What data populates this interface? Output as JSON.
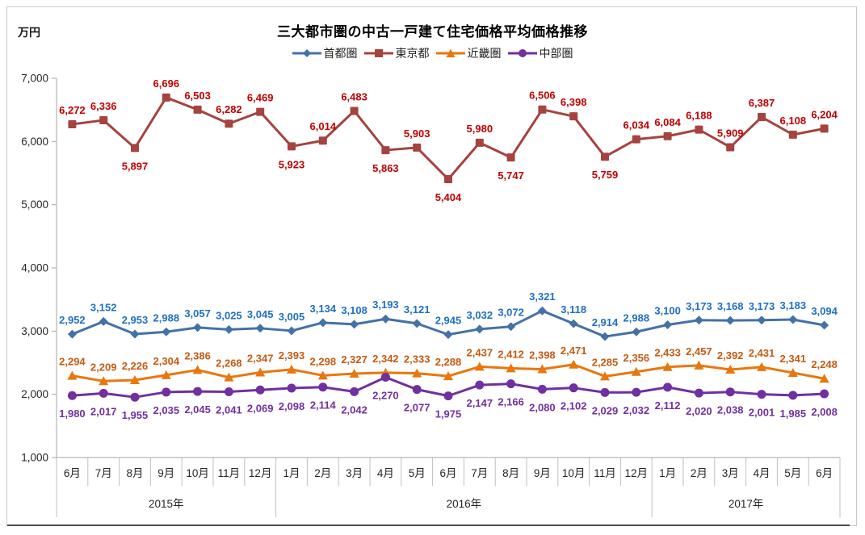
{
  "chart_data": {
    "type": "line",
    "title": "三大都市圏の中古一戸建て住宅価格平均価格推移",
    "unit": "万円",
    "grid": false,
    "legend_position": "top",
    "ylim": [
      1000,
      7000
    ],
    "y_axis": {
      "min": 1000,
      "max": 7000,
      "step": 1000
    },
    "x_groups": [
      {
        "year": "2015年",
        "months": [
          "6月",
          "7月",
          "8月",
          "9月",
          "10月",
          "11月",
          "12月"
        ]
      },
      {
        "year": "2016年",
        "months": [
          "1月",
          "2月",
          "3月",
          "4月",
          "5月",
          "6月",
          "7月",
          "8月",
          "9月",
          "10月",
          "11月",
          "12月"
        ]
      },
      {
        "year": "2017年",
        "months": [
          "1月",
          "2月",
          "3月",
          "4月",
          "5月",
          "6月"
        ]
      }
    ],
    "series": [
      {
        "key": "shutoken",
        "name": "首都圏",
        "marker": "diamond",
        "line_color": "#4471A6",
        "label_color": "#1F6FC4",
        "label_position": "above",
        "label_below_indices": [],
        "values": [
          2952,
          3152,
          2953,
          2988,
          3057,
          3025,
          3045,
          3005,
          3134,
          3108,
          3193,
          3121,
          2945,
          3032,
          3072,
          3321,
          3118,
          2914,
          2988,
          3100,
          3173,
          3168,
          3173,
          3183,
          3094
        ]
      },
      {
        "key": "tokyo",
        "name": "東京都",
        "marker": "square",
        "line_color": "#A5433F",
        "label_color": "#C00000",
        "label_position": "above",
        "label_below_indices": [
          2,
          7,
          10,
          12,
          14,
          17
        ],
        "values": [
          6272,
          6336,
          5897,
          6696,
          6503,
          6282,
          6469,
          5923,
          6014,
          6483,
          5863,
          5903,
          5404,
          5980,
          5747,
          6506,
          6398,
          5759,
          6034,
          6084,
          6188,
          5909,
          6387,
          6108,
          6204
        ]
      },
      {
        "key": "kinki",
        "name": "近畿圏",
        "marker": "triangle",
        "line_color": "#E8770D",
        "label_color": "#C55A11",
        "label_position": "above",
        "label_below_indices": [],
        "values": [
          2294,
          2209,
          2226,
          2304,
          2386,
          2268,
          2347,
          2393,
          2298,
          2327,
          2342,
          2333,
          2288,
          2437,
          2412,
          2398,
          2471,
          2285,
          2356,
          2433,
          2457,
          2392,
          2431,
          2341,
          2248
        ]
      },
      {
        "key": "chubu",
        "name": "中部圏",
        "marker": "circle",
        "line_color": "#7030A0",
        "label_color": "#7030A0",
        "label_position": "below",
        "label_below_indices": [],
        "values": [
          1980,
          2017,
          1955,
          2035,
          2045,
          2041,
          2069,
          2098,
          2114,
          2042,
          2270,
          2077,
          1975,
          2147,
          2166,
          2080,
          2102,
          2029,
          2032,
          2112,
          2020,
          2038,
          2001,
          1985,
          2008
        ]
      }
    ]
  }
}
